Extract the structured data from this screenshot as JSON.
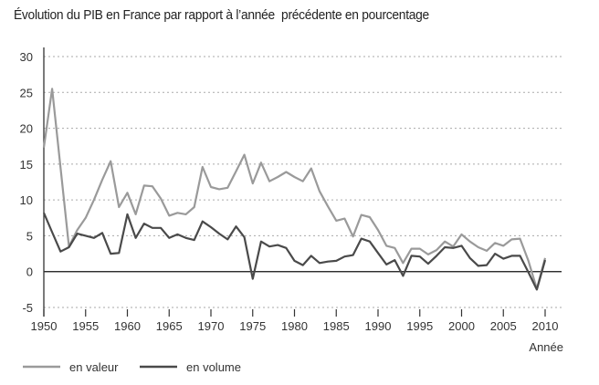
{
  "chart_data": {
    "type": "line",
    "title": "Évolution du PIB en France par rapport à l’année  précédente en pourcentage",
    "xlabel": "Année",
    "ylabel": "",
    "xlim": [
      1950,
      2010
    ],
    "ylim": [
      -5,
      30
    ],
    "yticks": [
      -5,
      0,
      5,
      10,
      15,
      20,
      25,
      30
    ],
    "xticks": [
      1950,
      1955,
      1960,
      1965,
      1970,
      1975,
      1980,
      1985,
      1990,
      1995,
      2000,
      2005,
      2010
    ],
    "grid": "horizontal dotted",
    "legend": "bottom-left",
    "x": [
      1950,
      1951,
      1952,
      1953,
      1954,
      1955,
      1956,
      1957,
      1958,
      1959,
      1960,
      1961,
      1962,
      1963,
      1964,
      1965,
      1966,
      1967,
      1968,
      1969,
      1970,
      1971,
      1972,
      1973,
      1974,
      1975,
      1976,
      1977,
      1978,
      1979,
      1980,
      1981,
      1982,
      1983,
      1984,
      1985,
      1986,
      1987,
      1988,
      1989,
      1990,
      1991,
      1992,
      1993,
      1994,
      1995,
      1996,
      1997,
      1998,
      1999,
      2000,
      2001,
      2002,
      2003,
      2004,
      2005,
      2006,
      2007,
      2008,
      2009,
      2010
    ],
    "series": [
      {
        "name": "en valeur",
        "color": "#9a9a9a",
        "values": [
          17.3,
          25.5,
          14.5,
          3.5,
          5.8,
          7.5,
          10,
          12.8,
          15.4,
          9,
          11,
          8,
          12,
          11.9,
          10.2,
          7.8,
          8.2,
          8,
          9,
          14.6,
          11.8,
          11.5,
          11.7,
          14,
          16.3,
          12.3,
          15.2,
          12.6,
          13.2,
          13.9,
          13.2,
          12.6,
          14.4,
          11.2,
          9.1,
          7.1,
          7.4,
          4.9,
          7.9,
          7.6,
          5.8,
          3.6,
          3.3,
          1.2,
          3.2,
          3.2,
          2.4,
          3,
          4.2,
          3.5,
          5.2,
          4.2,
          3.4,
          2.9,
          4,
          3.6,
          4.5,
          4.6,
          1.5,
          -2.4,
          1.9
        ]
      },
      {
        "name": "en volume",
        "color": "#4a4a4a",
        "values": [
          8.2,
          5.5,
          2.8,
          3.4,
          5.3,
          5.0,
          4.7,
          5.4,
          2.5,
          2.6,
          8,
          4.7,
          6.7,
          6.1,
          6.1,
          4.7,
          5.2,
          4.7,
          4.4,
          7.0,
          6.2,
          5.3,
          4.5,
          6.3,
          4.8,
          -1.0,
          4.2,
          3.5,
          3.7,
          3.3,
          1.5,
          0.9,
          2.2,
          1.2,
          1.4,
          1.5,
          2.1,
          2.3,
          4.6,
          4.2,
          2.6,
          1.0,
          1.6,
          -0.6,
          2.2,
          2.1,
          1.1,
          2.2,
          3.4,
          3.3,
          3.6,
          1.9,
          0.8,
          0.9,
          2.5,
          1.8,
          2.2,
          2.2,
          -0.1,
          -2.5,
          1.6
        ]
      }
    ]
  }
}
